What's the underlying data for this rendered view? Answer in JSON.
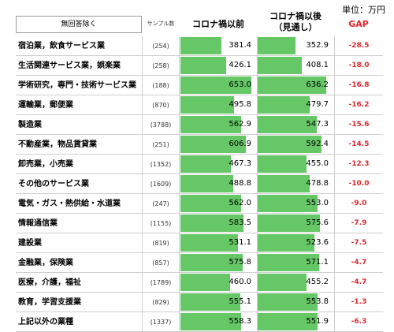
{
  "unit_label": "単位：万円",
  "headers": {
    "category_button": "無回答除く",
    "sample": "サンプル数",
    "before": "コロナ禍以前",
    "after_line1": "コロナ禍以後",
    "after_line2": "（見通し）",
    "gap": "GAP"
  },
  "colors": {
    "bar": "#66c766",
    "gap_text": "#e0262a"
  },
  "chart_data": {
    "type": "table",
    "value_max": 700,
    "columns": [
      "サンプル数",
      "コロナ禍以前",
      "コロナ禍以後（見通し）",
      "GAP"
    ],
    "rows": [
      {
        "category": "宿泊業，飲食サービス業",
        "n": "(254)",
        "before": 381.4,
        "after": 352.9,
        "gap": -28.5
      },
      {
        "category": "生活関連サービス業，娯楽業",
        "n": "(258)",
        "before": 426.1,
        "after": 408.1,
        "gap": -18.0
      },
      {
        "category": "学術研究，専門・技術サービス業",
        "n": "(188)",
        "before": 653.0,
        "after": 636.2,
        "gap": -16.8
      },
      {
        "category": "運輸業，郵便業",
        "n": "(870)",
        "before": 495.8,
        "after": 479.7,
        "gap": -16.2
      },
      {
        "category": "製造業",
        "n": "(3788)",
        "before": 562.9,
        "after": 547.3,
        "gap": -15.6
      },
      {
        "category": "不動産業，物品賃貸業",
        "n": "(251)",
        "before": 606.9,
        "after": 592.4,
        "gap": -14.5
      },
      {
        "category": "卸売業，小売業",
        "n": "(1352)",
        "before": 467.3,
        "after": 455.0,
        "gap": -12.3
      },
      {
        "category": "その他のサービス業",
        "n": "(1609)",
        "before": 488.8,
        "after": 478.8,
        "gap": -10.0
      },
      {
        "category": "電気・ガス・熱供給・水道業",
        "n": "(247)",
        "before": 562.0,
        "after": 553.0,
        "gap": -9.0
      },
      {
        "category": "情報通信業",
        "n": "(1155)",
        "before": 583.5,
        "after": 575.6,
        "gap": -7.9
      },
      {
        "category": "建設業",
        "n": "(819)",
        "before": 531.1,
        "after": 523.6,
        "gap": -7.5
      },
      {
        "category": "金融業，保険業",
        "n": "(857)",
        "before": 575.8,
        "after": 571.1,
        "gap": -4.7
      },
      {
        "category": "医療，介護，福祉",
        "n": "(1789)",
        "before": 460.0,
        "after": 455.2,
        "gap": -4.7
      },
      {
        "category": "教育，学習支援業",
        "n": "(829)",
        "before": 555.1,
        "after": 553.8,
        "gap": -1.3
      },
      {
        "category": "上記以外の業種",
        "n": "(1337)",
        "before": 558.3,
        "after": 551.9,
        "gap": -6.3
      }
    ]
  }
}
